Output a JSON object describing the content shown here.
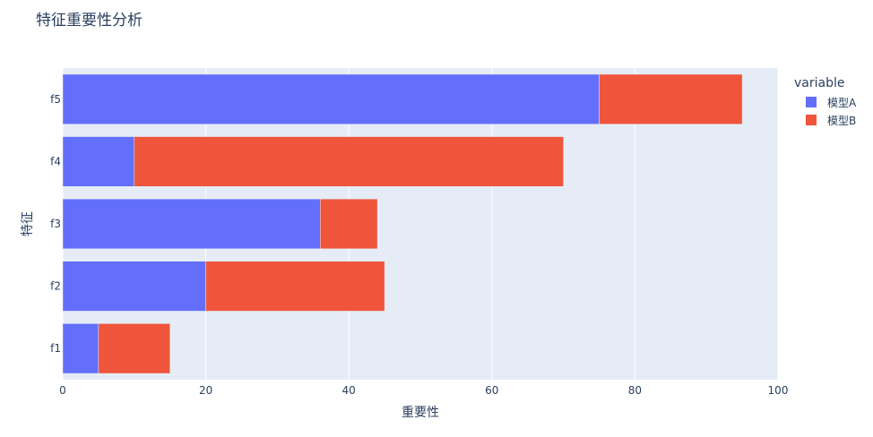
{
  "chart_data": {
    "type": "bar",
    "orientation": "horizontal",
    "barmode": "stack",
    "title": "特征重要性分析",
    "xlabel": "重要性",
    "ylabel": "特征",
    "categories": [
      "f1",
      "f2",
      "f3",
      "f4",
      "f5"
    ],
    "series": [
      {
        "name": "模型A",
        "values": [
          5,
          20,
          36,
          10,
          75
        ],
        "color": "#636efa"
      },
      {
        "name": "模型B",
        "values": [
          10,
          25,
          8,
          60,
          20
        ],
        "color": "#ef553b"
      }
    ],
    "xlim": [
      0,
      100
    ],
    "xticks": [
      "0",
      "20",
      "40",
      "60",
      "80",
      "100"
    ],
    "grid": true,
    "plot_background": "#e5ecf6",
    "legend": {
      "title": "variable",
      "placement": "top-right"
    }
  }
}
